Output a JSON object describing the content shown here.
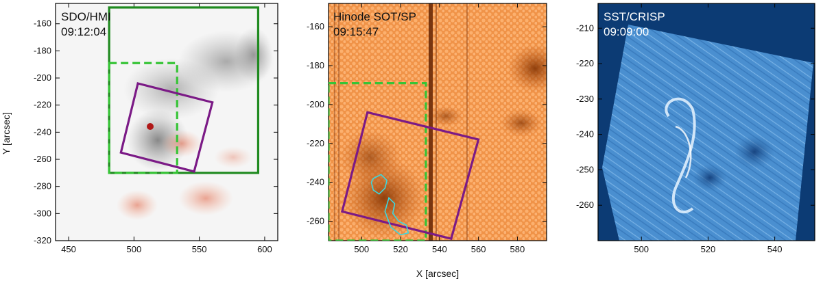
{
  "figure": {
    "shared_xlabel": "X [arcsec]",
    "shared_ylabel": "Y [arcsec]"
  },
  "colors": {
    "box_green": "#1f8a1f",
    "box_dashed_green": "#36c436",
    "box_purple": "#7b1a86",
    "contour_cyan": "#3ad8e0",
    "hmi_bg": "#f4f4f4",
    "sot_bg": "#e8843a",
    "crisp_bg": "#0b3a73",
    "crisp_fov": "#3f86c8"
  },
  "chart_data": [
    {
      "type": "image",
      "instrument": "SDO/HMI",
      "time": "09:12:04",
      "xlim": [
        440,
        610
      ],
      "ylim": [
        -320,
        -145
      ],
      "xticks": [
        450,
        500,
        550,
        600
      ],
      "yticks": [
        -160,
        -180,
        -200,
        -220,
        -240,
        -260,
        -280,
        -300,
        -320
      ],
      "ylabel": "Y [arcsec]",
      "overlays": [
        {
          "name": "solid-green-box",
          "style": "solid",
          "color": "green",
          "x": [
            481,
            595
          ],
          "y": [
            -270,
            -148
          ]
        },
        {
          "name": "dashed-green-box",
          "style": "dashed",
          "color": "light-green",
          "x": [
            481,
            533
          ],
          "y": [
            -270,
            -189
          ]
        },
        {
          "name": "purple-box",
          "style": "solid",
          "color": "purple",
          "corners": [
            [
              503,
              -204
            ],
            [
              560,
              -218
            ],
            [
              546,
              -269
            ],
            [
              490,
              -255
            ]
          ]
        }
      ]
    },
    {
      "type": "image",
      "instrument": "Hinode SOT/SP",
      "time": "09:15:47",
      "xlim": [
        483,
        595
      ],
      "ylim": [
        -270,
        -148
      ],
      "xticks": [
        500,
        520,
        540,
        560,
        580
      ],
      "yticks": [
        -160,
        -180,
        -200,
        -220,
        -240,
        -260
      ],
      "xlabel": "X [arcsec]",
      "overlays": [
        {
          "name": "dashed-green-box",
          "style": "dashed",
          "color": "light-green",
          "x": [
            483,
            533
          ],
          "y": [
            -270,
            -189
          ]
        },
        {
          "name": "purple-box",
          "style": "solid",
          "color": "purple",
          "corners": [
            [
              503,
              -204
            ],
            [
              560,
              -218
            ],
            [
              546,
              -269
            ],
            [
              490,
              -255
            ]
          ]
        },
        {
          "name": "cyan-contour",
          "style": "solid",
          "color": "cyan",
          "approx_x": [
            505,
            524
          ],
          "approx_y": [
            -237,
            -267
          ]
        }
      ]
    },
    {
      "type": "image",
      "instrument": "SST/CRISP",
      "time": "09:09:00",
      "xlim": [
        487,
        552
      ],
      "ylim": [
        -270,
        -203
      ],
      "xticks": [
        500,
        520,
        540
      ],
      "yticks": [
        -210,
        -220,
        -230,
        -240,
        -250,
        -260
      ]
    }
  ]
}
